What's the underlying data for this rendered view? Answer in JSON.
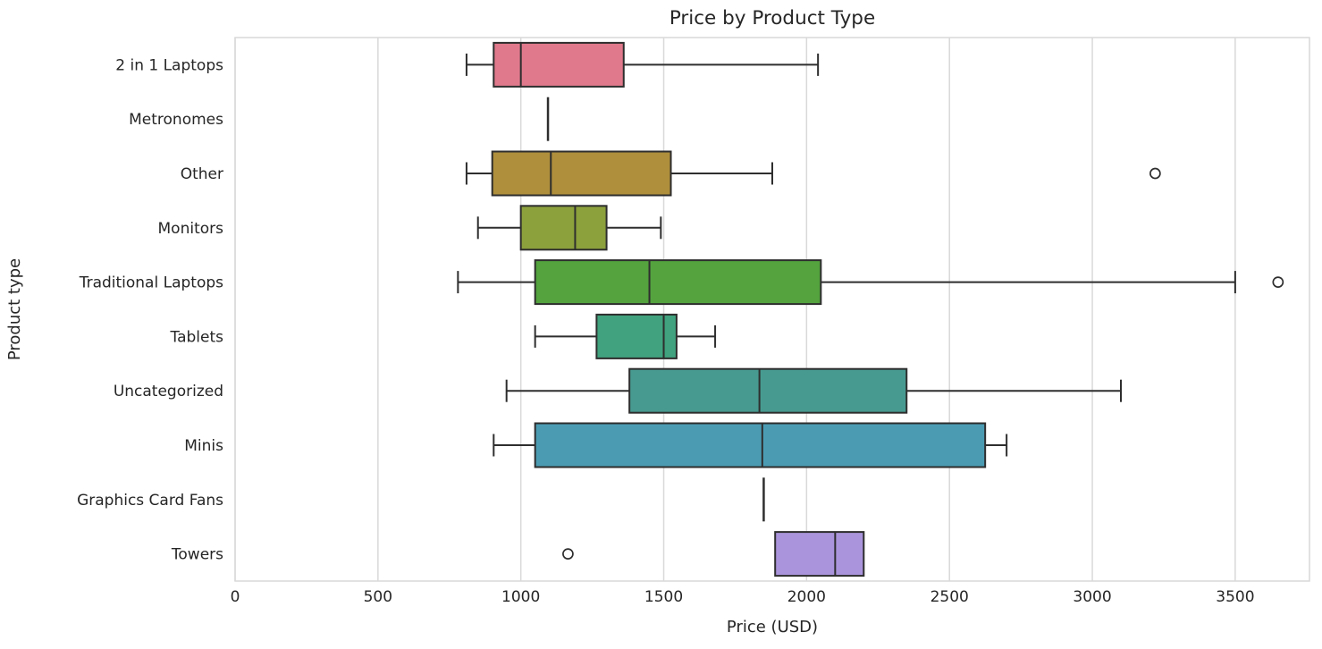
{
  "chart_data": {
    "type": "boxplot",
    "orientation": "horizontal",
    "title": "Price by Product Type",
    "xlabel": "Price (USD)",
    "ylabel": "Product type",
    "xlim": [
      0,
      3760
    ],
    "xticks": [
      0,
      500,
      1000,
      1500,
      2000,
      2500,
      3000,
      3500
    ],
    "grid": true,
    "categories": [
      "2 in 1 Laptops",
      "Metronomes",
      "Other",
      "Monitors",
      "Traditional Laptops",
      "Tablets",
      "Uncategorized",
      "Minis",
      "Graphics Card Fans",
      "Towers"
    ],
    "series": [
      {
        "label": "2 in 1 Laptops",
        "color": "#e0798c",
        "whislo": 810,
        "q1": 905,
        "med": 1000,
        "q3": 1360,
        "whishi": 2040,
        "outliers": []
      },
      {
        "label": "Metronomes",
        "color": null,
        "whislo": 1095,
        "q1": 1095,
        "med": 1095,
        "q3": 1095,
        "whishi": 1095,
        "outliers": []
      },
      {
        "label": "Other",
        "color": "#af8f3c",
        "whislo": 810,
        "q1": 900,
        "med": 1105,
        "q3": 1525,
        "whishi": 1880,
        "outliers": [
          3220
        ]
      },
      {
        "label": "Monitors",
        "color": "#8ca03c",
        "whislo": 850,
        "q1": 1000,
        "med": 1190,
        "q3": 1300,
        "whishi": 1490,
        "outliers": []
      },
      {
        "label": "Traditional Laptops",
        "color": "#54a33e",
        "whislo": 780,
        "q1": 1050,
        "med": 1450,
        "q3": 2050,
        "whishi": 3500,
        "outliers": [
          3650
        ]
      },
      {
        "label": "Tablets",
        "color": "#40a27e",
        "whislo": 1050,
        "q1": 1265,
        "med": 1500,
        "q3": 1545,
        "whishi": 1680,
        "outliers": []
      },
      {
        "label": "Uncategorized",
        "color": "#479a90",
        "whislo": 950,
        "q1": 1380,
        "med": 1835,
        "q3": 2350,
        "whishi": 3100,
        "outliers": []
      },
      {
        "label": "Minis",
        "color": "#4b9cb3",
        "whislo": 905,
        "q1": 1050,
        "med": 1845,
        "q3": 2625,
        "whishi": 2700,
        "outliers": []
      },
      {
        "label": "Graphics Card Fans",
        "color": null,
        "whislo": 1850,
        "q1": 1850,
        "med": 1850,
        "q3": 1850,
        "whishi": 1850,
        "outliers": []
      },
      {
        "label": "Towers",
        "color": "#aa95dc",
        "whislo": 1890,
        "q1": 1890,
        "med": 2100,
        "q3": 2200,
        "whishi": 2200,
        "outliers": [
          1165
        ]
      }
    ]
  },
  "styles": {
    "box_edge_color": "#2e2e2e",
    "grid_color": "#d9d9d9",
    "text_color": "#262626",
    "background": "#ffffff"
  }
}
